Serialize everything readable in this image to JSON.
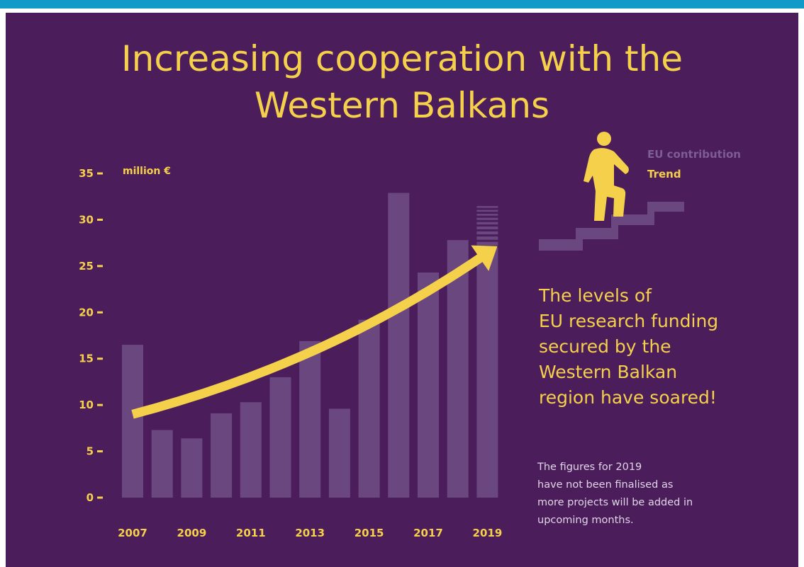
{
  "title": [
    "Increasing cooperation with the",
    "Western Balkans"
  ],
  "colors": {
    "background": "#4b1d5b",
    "accent": "#f5d04a",
    "bars": "#6b4780",
    "topbar": "#109ac8"
  },
  "chart_data": {
    "type": "bar",
    "unit_label": "million €",
    "categories": [
      "2007",
      "2008",
      "2009",
      "2010",
      "2011",
      "2012",
      "2013",
      "2014",
      "2015",
      "2016",
      "2017",
      "2018",
      "2019"
    ],
    "x_tick_labels": [
      "2007",
      "2009",
      "2011",
      "2013",
      "2015",
      "2017",
      "2019"
    ],
    "y_ticks": [
      0,
      5,
      10,
      15,
      20,
      25,
      30,
      35
    ],
    "ylim": [
      0,
      35
    ],
    "series": [
      {
        "name": "EU contribution",
        "values": [
          16.5,
          7.3,
          6.4,
          9.1,
          10.3,
          13.0,
          16.9,
          9.6,
          19.2,
          32.9,
          24.3,
          27.8,
          31.5
        ],
        "provisional_last": true
      }
    ],
    "trend": {
      "name": "Trend",
      "start": {
        "x": "2007",
        "y": 9.0
      },
      "end": {
        "x": "2019",
        "y": 26.5
      }
    },
    "legend": [
      "EU contribution",
      "Trend"
    ],
    "legend_position": "top-right",
    "grid": false
  },
  "headline": [
    "The levels of",
    "EU research funding",
    "secured by the",
    "Western Balkan",
    "region have soared!"
  ],
  "footnote": [
    "The figures for 2019",
    "have not been finalised as",
    "more projects will be added in",
    "upcoming months."
  ],
  "icon": "person-climbing-stairs-icon"
}
